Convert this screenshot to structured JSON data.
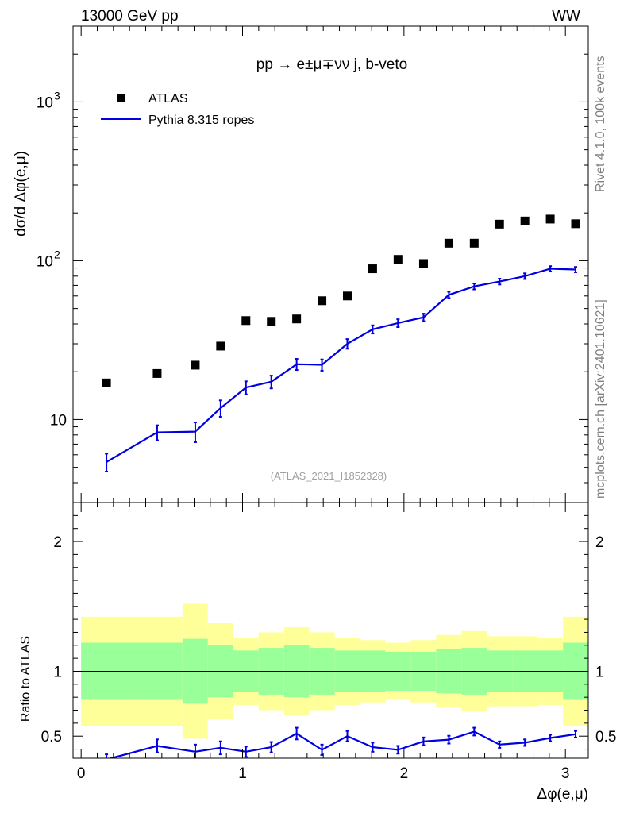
{
  "chart_data": {
    "type": "line",
    "title": "pp → e±μ∓νν j, b-veto",
    "header_left": "13000 GeV pp",
    "header_right": "WW",
    "xlabel": "Δφ(e,μ)",
    "ylabel": "dσ/d Δφ(e,μ)",
    "ratio_ylabel": "Ratio to ATLAS",
    "side_label_1": "Rivet 4.1.0,  100k events",
    "side_label_2": "mcplots.cern.ch [arXiv:2401.10621]",
    "watermark": "(ATLAS_2021_I1852328)",
    "xlim": [
      -0.05,
      3.1416
    ],
    "ylim": [
      3.0,
      3000
    ],
    "ratio_ylim": [
      0.33,
      2.3
    ],
    "main_yticks": [
      {
        "value": 10,
        "base": "10",
        "exp": ""
      },
      {
        "value": 100,
        "base": "10",
        "exp": "2"
      },
      {
        "value": 1000,
        "base": "10",
        "exp": "3"
      }
    ],
    "ratio_yticks": [
      "0.5",
      "1",
      "2"
    ],
    "ratio_ytick_values": [
      0.5,
      1,
      2
    ],
    "xticks": [
      "0",
      "1",
      "2",
      "3"
    ],
    "xtick_values": [
      0,
      1,
      2,
      3
    ],
    "bin_edges": [
      0,
      0.314,
      0.628,
      0.785,
      0.942,
      1.099,
      1.257,
      1.414,
      1.571,
      1.728,
      1.885,
      2.042,
      2.199,
      2.356,
      2.513,
      2.67,
      2.827,
      2.985,
      3.1416
    ],
    "series": [
      {
        "name": "ATLAS",
        "style": "markers",
        "color": "#000000",
        "x": [
          0.157,
          0.471,
          0.707,
          0.864,
          1.021,
          1.178,
          1.335,
          1.492,
          1.649,
          1.806,
          1.963,
          2.121,
          2.278,
          2.435,
          2.592,
          2.749,
          2.906,
          3.063
        ],
        "values": [
          17,
          19.5,
          22,
          29,
          42,
          41.5,
          43,
          56,
          60,
          89,
          102,
          96,
          129,
          129,
          170,
          178,
          183,
          171
        ]
      },
      {
        "name": "Pythia 8.315 ropes",
        "style": "line",
        "color": "#0000e0",
        "x": [
          0.157,
          0.471,
          0.707,
          0.864,
          1.021,
          1.178,
          1.335,
          1.492,
          1.649,
          1.806,
          1.963,
          2.121,
          2.278,
          2.435,
          2.592,
          2.749,
          2.906,
          3.063
        ],
        "values": [
          5.4,
          8.3,
          8.4,
          11.8,
          15.9,
          17.3,
          22.3,
          22.1,
          30,
          37,
          40.5,
          44,
          61,
          69,
          74,
          80,
          89,
          88
        ],
        "errors": [
          0.7,
          0.9,
          1.2,
          1.4,
          1.5,
          1.6,
          1.8,
          1.8,
          2.1,
          2.2,
          2.3,
          2.4,
          2.8,
          3.0,
          3.1,
          3.3,
          3.5,
          3.4
        ]
      }
    ],
    "ratio": {
      "values": [
        0.32,
        0.425,
        0.38,
        0.41,
        0.38,
        0.415,
        0.52,
        0.395,
        0.5,
        0.415,
        0.395,
        0.46,
        0.473,
        0.535,
        0.435,
        0.45,
        0.486,
        0.515
      ],
      "errors": [
        0.04,
        0.05,
        0.055,
        0.05,
        0.04,
        0.04,
        0.045,
        0.04,
        0.04,
        0.035,
        0.03,
        0.03,
        0.03,
        0.03,
        0.025,
        0.025,
        0.025,
        0.025
      ],
      "green_band": [
        0.22,
        0.22,
        0.25,
        0.2,
        0.16,
        0.18,
        0.2,
        0.18,
        0.16,
        0.16,
        0.15,
        0.15,
        0.17,
        0.18,
        0.16,
        0.16,
        0.16,
        0.22
      ],
      "yellow_band": [
        0.42,
        0.42,
        0.52,
        0.37,
        0.26,
        0.3,
        0.34,
        0.3,
        0.26,
        0.24,
        0.22,
        0.24,
        0.28,
        0.31,
        0.27,
        0.27,
        0.26,
        0.42
      ]
    }
  }
}
